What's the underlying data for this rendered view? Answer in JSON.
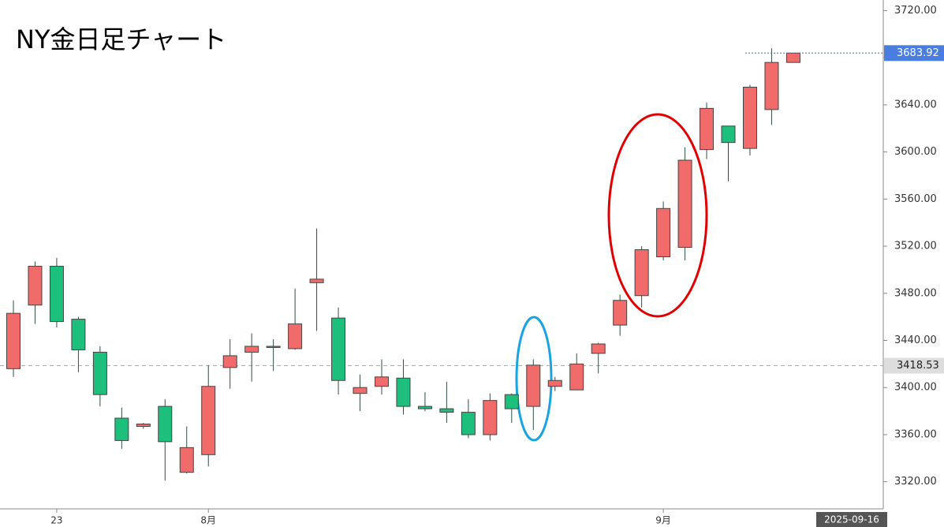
{
  "chart_data": {
    "type": "candlestick",
    "title": "NY金日足チャート",
    "categories": [
      null,
      null,
      "23",
      null,
      null,
      null,
      null,
      null,
      null,
      "8月",
      null,
      null,
      null,
      null,
      null,
      null,
      null,
      null,
      null,
      null,
      null,
      null,
      null,
      null,
      null,
      null,
      null,
      null,
      null,
      null,
      "9月",
      null,
      null,
      null,
      null,
      null,
      null
    ],
    "open": [
      3416,
      3470,
      3503,
      3458,
      3430,
      3374,
      3367,
      3384,
      3328,
      3343,
      3417,
      3430,
      3435,
      3433,
      3489,
      3459,
      3395,
      3401,
      3408,
      3384,
      3382,
      3379,
      3360,
      3394,
      3384,
      3401,
      3398,
      3429,
      3453,
      3478,
      3511,
      3519,
      3602,
      3622,
      3603,
      3636,
      3676
    ],
    "high": [
      3474,
      3507,
      3510,
      3460,
      3435,
      3383,
      3370,
      3390,
      3367,
      3419,
      3441,
      3446,
      3441,
      3484,
      3535,
      3468,
      3411,
      3424,
      3424,
      3396,
      3405,
      3390,
      3395,
      3395,
      3424,
      3409,
      3429,
      3438,
      3479,
      3520,
      3558,
      3604,
      3642,
      3622,
      3657,
      3688,
      3684
    ],
    "low": [
      3409,
      3454,
      3451,
      3413,
      3384,
      3348,
      3365,
      3321,
      3327,
      3333,
      3399,
      3405,
      3414,
      3432,
      3448,
      3394,
      3380,
      3394,
      3377,
      3380,
      3370,
      3357,
      3355,
      3370,
      3364,
      3397,
      3398,
      3412,
      3444,
      3468,
      3508,
      3508,
      3594,
      3575,
      3597,
      3623,
      3676
    ],
    "close": [
      3463,
      3503,
      3456,
      3432,
      3394,
      3355,
      3369,
      3354,
      3349,
      3401,
      3427,
      3435,
      3434,
      3454,
      3492,
      3406,
      3400,
      3409,
      3384,
      3382,
      3379,
      3360,
      3389,
      3382,
      3419,
      3406,
      3420,
      3437,
      3474,
      3517,
      3552,
      3593,
      3637,
      3608,
      3655,
      3676,
      3683.92
    ],
    "up_color": "#f26b6b",
    "down_color": "#1dbf7d",
    "ylim": [
      3297,
      3729
    ],
    "yticks": [
      {
        "value": 3320,
        "label": "3320.00"
      },
      {
        "value": 3360,
        "label": "3360.00"
      },
      {
        "value": 3400,
        "label": "3400.00"
      },
      {
        "value": 3440,
        "label": "3440.00"
      },
      {
        "value": 3480,
        "label": "3480.00"
      },
      {
        "value": 3520,
        "label": "3520.00"
      },
      {
        "value": 3560,
        "label": "3560.00"
      },
      {
        "value": 3600,
        "label": "3600.00"
      },
      {
        "value": 3640,
        "label": "3640.00"
      },
      {
        "value": 3680,
        "label": "3680.00"
      },
      {
        "value": 3720,
        "label": "3720.00"
      }
    ],
    "last_price": 3683.92,
    "reference_price": 3418.53,
    "cursor_date": "2025-09-16"
  }
}
